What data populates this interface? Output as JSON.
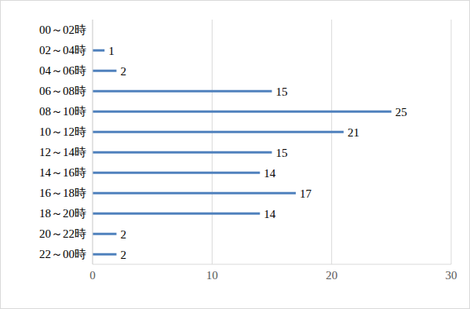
{
  "chart_data": {
    "type": "bar",
    "orientation": "horizontal",
    "categories": [
      "00～02時",
      "02～04時",
      "04～06時",
      "06～08時",
      "08～10時",
      "10～12時",
      "12～14時",
      "14～16時",
      "16～18時",
      "18～20時",
      "20～22時",
      "22～00時"
    ],
    "values": [
      0,
      1,
      2,
      15,
      25,
      21,
      15,
      14,
      17,
      14,
      2,
      2
    ],
    "color": "#4f81bd",
    "xlim": [
      0,
      30
    ],
    "xticks": [
      0,
      10,
      20,
      30
    ],
    "grid": true,
    "data_labels": true
  }
}
